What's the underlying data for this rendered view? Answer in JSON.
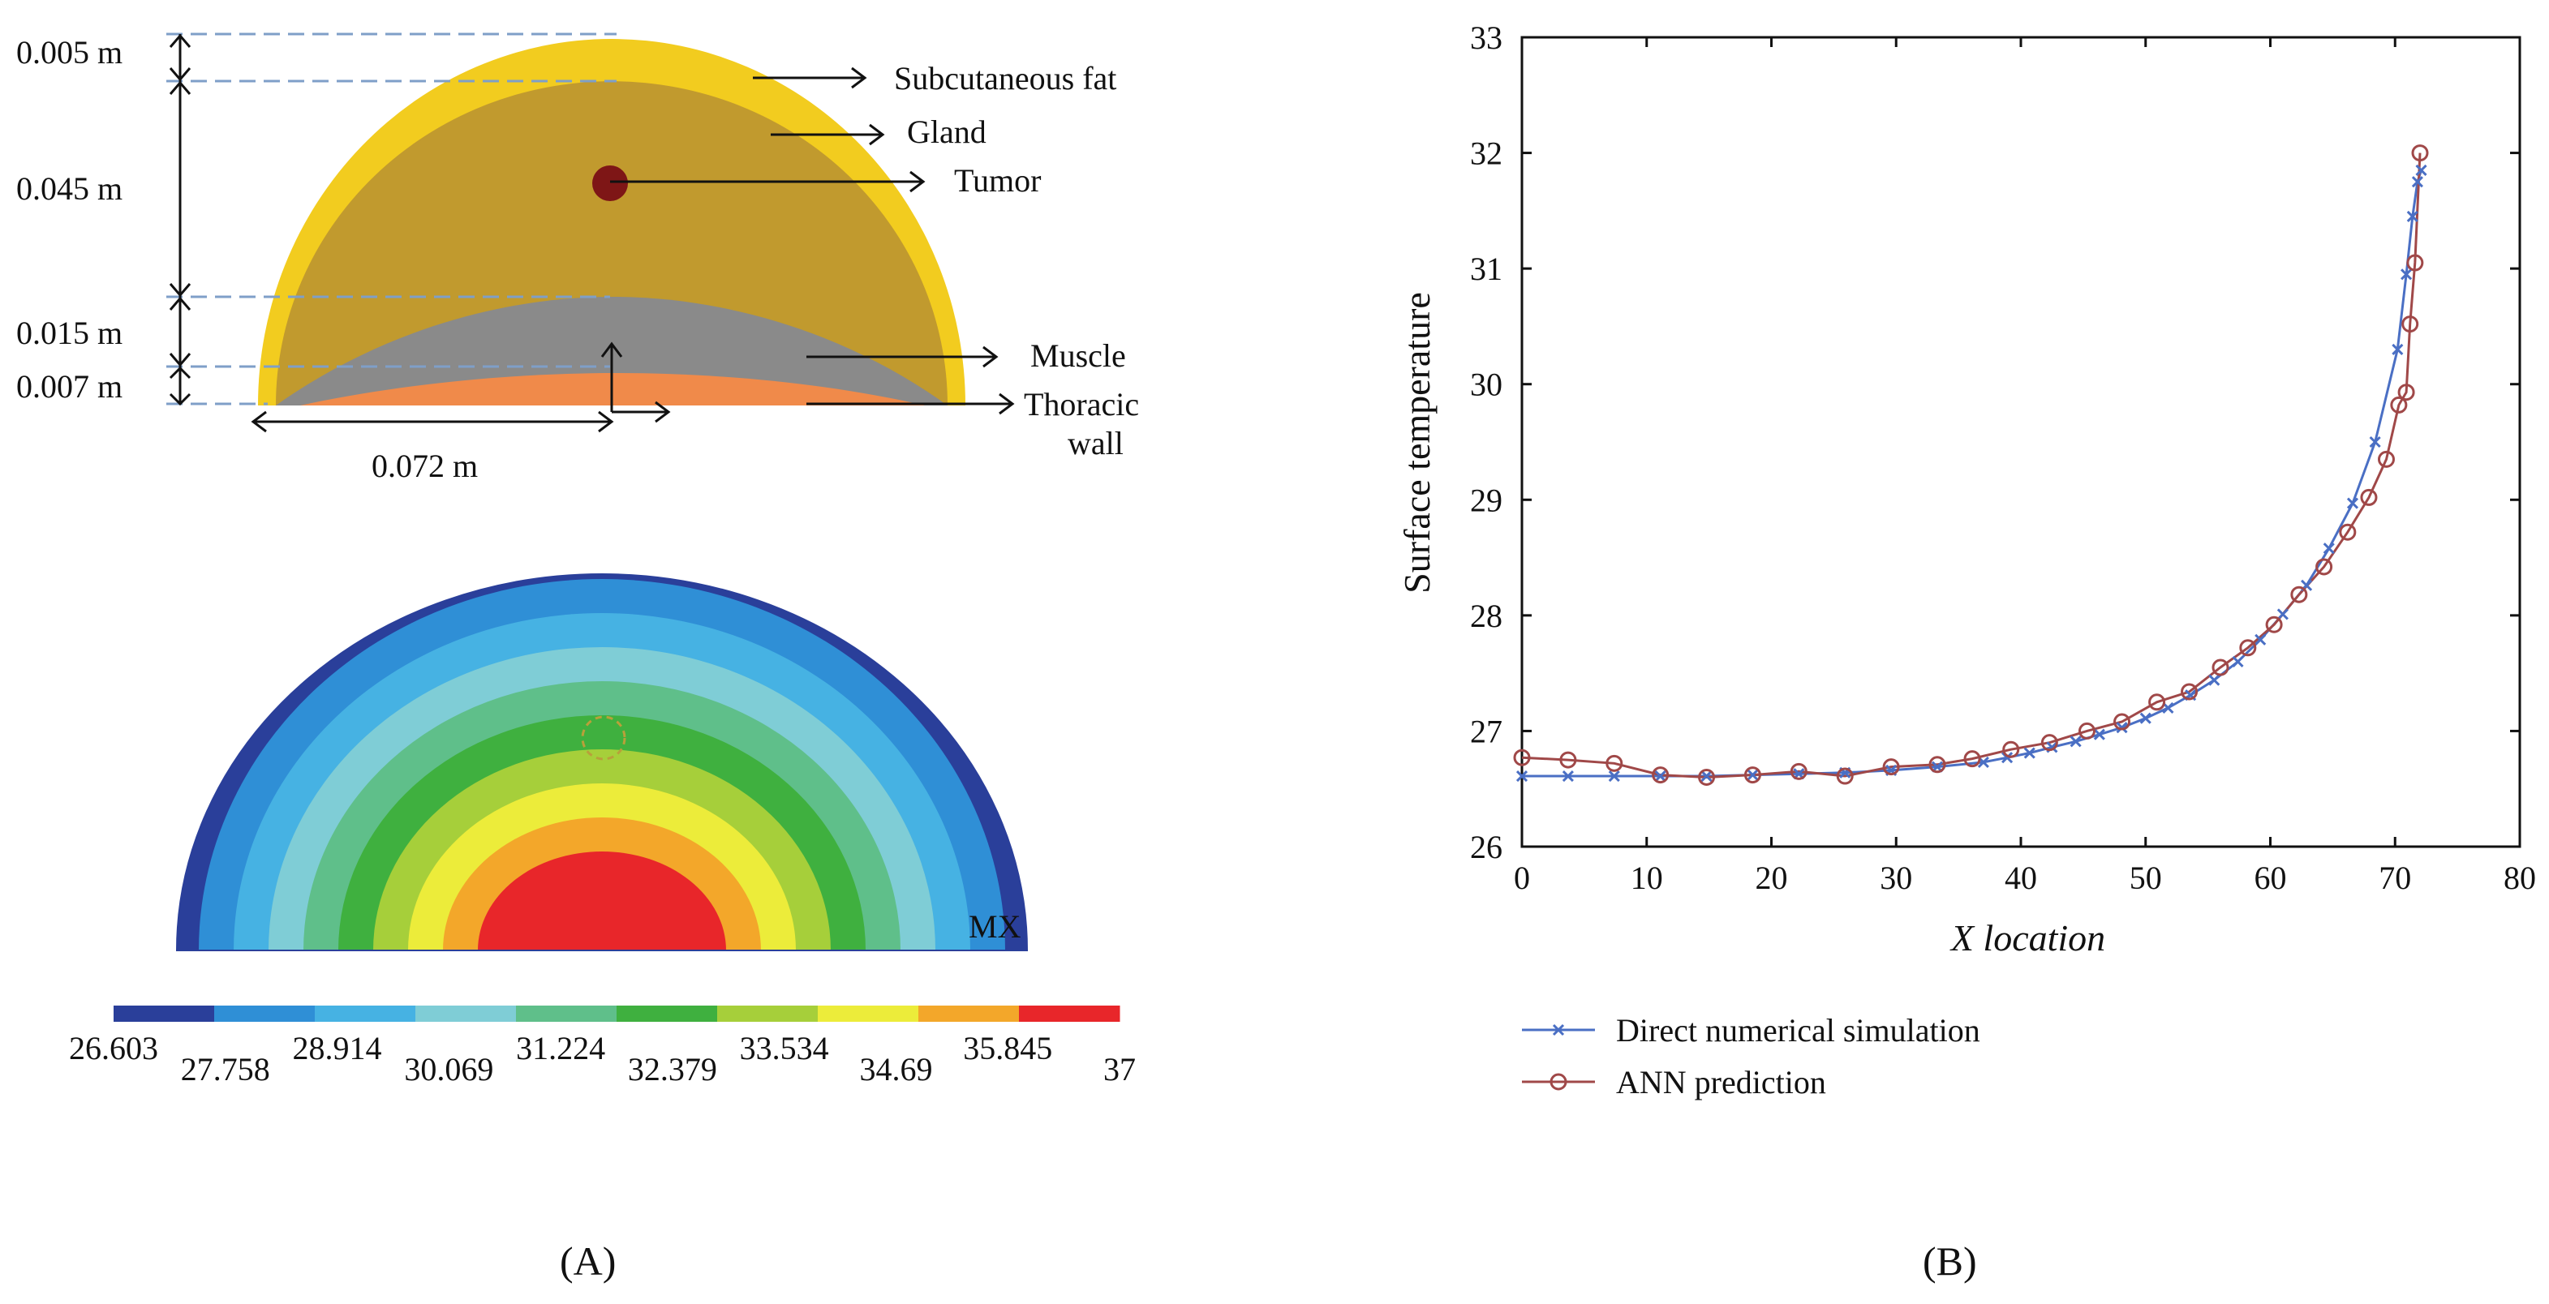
{
  "panel_a": {
    "caption": "(A)",
    "dimensions": {
      "fat_thickness": "0.005 m",
      "gland_thickness": "0.045 m",
      "muscle_thickness": "0.015 m",
      "wall_thickness": "0.007 m",
      "radius": "0.072 m"
    },
    "tissue_labels": {
      "fat": "Subcutaneous fat",
      "gland": "Gland",
      "tumor": "Tumor",
      "muscle": "Muscle",
      "wall_line1": "Thoracic",
      "wall_line2": "wall"
    },
    "contour_marker": "MX",
    "colorbar": {
      "ticks": [
        "26.603",
        "27.758",
        "28.914",
        "30.069",
        "31.224",
        "32.379",
        "33.534",
        "34.69",
        "35.845",
        "37"
      ],
      "colors": [
        "#2a3f9a",
        "#2f8fd6",
        "#46b2e3",
        "#7fcdd6",
        "#5fbf8a",
        "#3fb03f",
        "#a6cf3a",
        "#ecec3a",
        "#f3a72a",
        "#e8262a"
      ]
    },
    "colors": {
      "fat": "#f2cc1f",
      "gland": "#c19a2e",
      "tumor": "#7e1616",
      "muscle": "#8a8a8a",
      "wall": "#f08a4a"
    }
  },
  "panel_b": {
    "caption": "(B)",
    "chart_data": {
      "type": "line",
      "title": "",
      "xlabel": "X location",
      "ylabel": "Surface temperature",
      "xlim": [
        0,
        80
      ],
      "ylim": [
        26,
        33
      ],
      "xticks": [
        "0",
        "10",
        "20",
        "30",
        "40",
        "50",
        "60",
        "70",
        "80"
      ],
      "yticks": [
        "26",
        "27",
        "28",
        "29",
        "30",
        "31",
        "32",
        "33"
      ],
      "legend_position": "bottom-left-outside",
      "series": [
        {
          "name": "Direct numerical simulation",
          "color": "#4a6fc4",
          "marker": "x",
          "x": [
            0,
            3.7,
            7.4,
            11.1,
            14.8,
            18.5,
            22.2,
            25.9,
            29.6,
            33.3,
            37,
            38.9,
            40.7,
            42.5,
            44.4,
            46.3,
            48.1,
            50,
            51.8,
            53.6,
            55.5,
            57.4,
            59.2,
            61,
            62.9,
            64.7,
            66.6,
            68.4,
            70.2,
            70.9,
            71.4,
            71.8,
            72.1
          ],
          "values": [
            26.61,
            26.61,
            26.61,
            26.61,
            26.61,
            26.62,
            26.63,
            26.64,
            26.66,
            26.69,
            26.73,
            26.77,
            26.81,
            26.86,
            26.91,
            26.97,
            27.03,
            27.11,
            27.2,
            27.31,
            27.44,
            27.6,
            27.79,
            28.01,
            28.26,
            28.58,
            28.97,
            29.5,
            30.3,
            30.95,
            31.45,
            31.75,
            31.85
          ]
        },
        {
          "name": "ANN prediction",
          "color": "#a04848",
          "marker": "o",
          "x": [
            0,
            3.7,
            7.4,
            11.1,
            14.8,
            18.5,
            22.2,
            25.9,
            29.6,
            33.3,
            36.1,
            39.2,
            42.3,
            45.3,
            48.1,
            50.9,
            53.5,
            56,
            58.2,
            60.3,
            62.3,
            64.3,
            66.2,
            67.9,
            69.3,
            70.3,
            70.9,
            71.2,
            71.6,
            72
          ],
          "values": [
            26.77,
            26.75,
            26.72,
            26.62,
            26.6,
            26.62,
            26.65,
            26.61,
            26.69,
            26.71,
            26.76,
            26.84,
            26.9,
            27.0,
            27.08,
            27.25,
            27.34,
            27.55,
            27.72,
            27.92,
            28.18,
            28.42,
            28.72,
            29.02,
            29.35,
            29.82,
            29.93,
            30.52,
            31.05,
            32.0
          ]
        }
      ]
    }
  }
}
